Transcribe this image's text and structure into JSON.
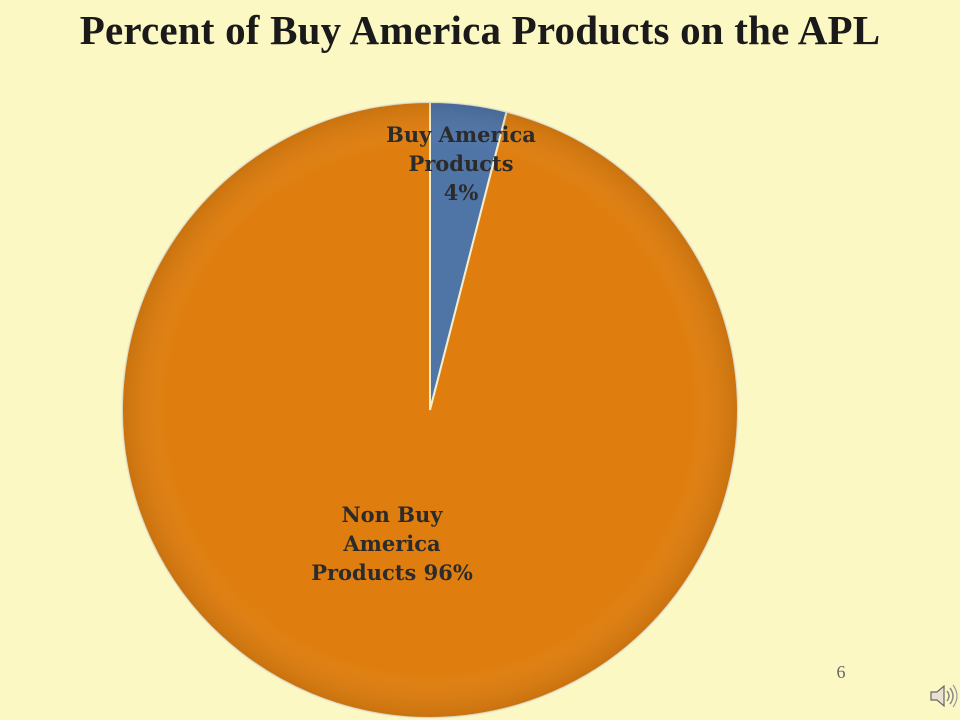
{
  "slide": {
    "title": "Percent of Buy America Products on the APL",
    "page_number": "6"
  },
  "icons": {
    "audio": "speaker-icon"
  },
  "colors": {
    "background": "#fbf8c4",
    "buy_america": "#4f74a6",
    "non_buy_america": "#df7e0f"
  },
  "chart_data": {
    "type": "pie",
    "title": "Percent of Buy America Products on the APL",
    "slices": [
      {
        "label_lines": [
          "Buy America",
          "Products",
          "4%"
        ],
        "value": 4,
        "color": "#4f74a6"
      },
      {
        "label_lines": [
          "Non Buy",
          "America",
          "Products 96%"
        ],
        "value": 96,
        "color": "#df7e0f"
      }
    ],
    "start_angle_deg": 0,
    "direction": "clockwise",
    "legend": "none"
  }
}
